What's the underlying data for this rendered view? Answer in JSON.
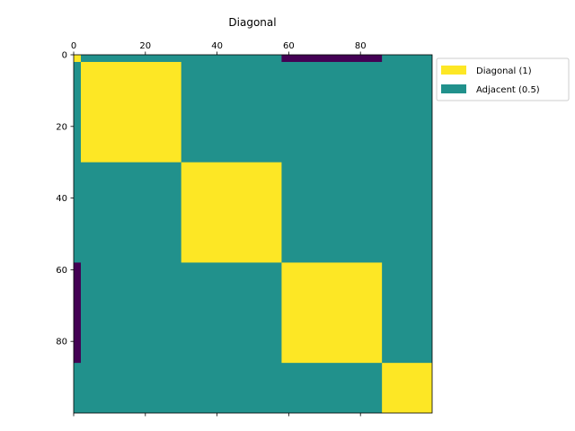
{
  "chart_data": {
    "type": "heatmap",
    "title": "Diagonal",
    "xlabel": "",
    "ylabel": "",
    "xlim": [
      0,
      100
    ],
    "ylim": [
      100,
      0
    ],
    "x_ticks": [
      0,
      20,
      40,
      60,
      80
    ],
    "y_ticks": [
      0,
      20,
      40,
      60,
      80
    ],
    "x_axis_position": "top",
    "grid": false,
    "legend_position": "outside-upper-right",
    "colors": {
      "diagonal": "#fde725",
      "adjacent": "#21918c",
      "zero": "#440154"
    },
    "legend": [
      {
        "label": "Diagonal (1)",
        "color": "#fde725"
      },
      {
        "label": "Adjacent (0.5)",
        "color": "#21918c"
      }
    ],
    "background_value": 0.5,
    "blocks": [
      {
        "x": [
          0,
          2
        ],
        "y": [
          0,
          2
        ],
        "value": 1
      },
      {
        "x": [
          2,
          30
        ],
        "y": [
          2,
          30
        ],
        "value": 1
      },
      {
        "x": [
          30,
          58
        ],
        "y": [
          30,
          58
        ],
        "value": 1
      },
      {
        "x": [
          58,
          86
        ],
        "y": [
          58,
          86
        ],
        "value": 1
      },
      {
        "x": [
          86,
          100
        ],
        "y": [
          86,
          100
        ],
        "value": 1
      },
      {
        "x": [
          58,
          86
        ],
        "y": [
          0,
          2
        ],
        "value": 0
      },
      {
        "x": [
          0,
          2
        ],
        "y": [
          58,
          86
        ],
        "value": 0
      }
    ]
  }
}
